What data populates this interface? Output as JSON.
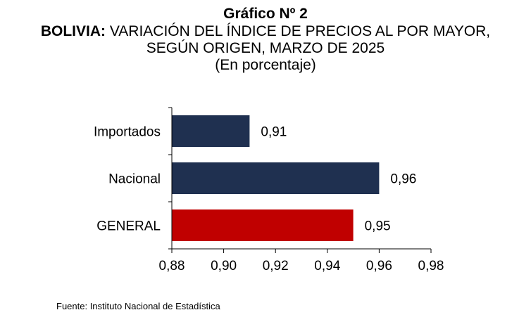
{
  "chart_data": {
    "type": "bar",
    "orientation": "horizontal",
    "title": "Gráfico Nº 2",
    "subtitle_bold": "BOLIVIA:",
    "subtitle_rest": " VARIACIÓN DEL ÍNDICE DE PRECIOS AL POR MAYOR,",
    "subtitle_line2": "SEGÚN ORIGEN, MARZO DE 2025",
    "subtitle_line3": "(En porcentaje)",
    "categories": [
      "Importados",
      "Nacional",
      "GENERAL"
    ],
    "values": [
      0.91,
      0.96,
      0.95
    ],
    "value_labels": [
      "0,91",
      "0,96",
      "0,95"
    ],
    "bar_colors": [
      "#1f3050",
      "#1f3050",
      "#c00000"
    ],
    "xlim": [
      0.88,
      0.98
    ],
    "xticks": [
      0.88,
      0.9,
      0.92,
      0.94,
      0.96,
      0.98
    ],
    "xtick_labels": [
      "0,88",
      "0,90",
      "0,92",
      "0,94",
      "0,96",
      "0,98"
    ],
    "grid": false
  },
  "source": "Fuente: Instituto Nacional de Estadística"
}
